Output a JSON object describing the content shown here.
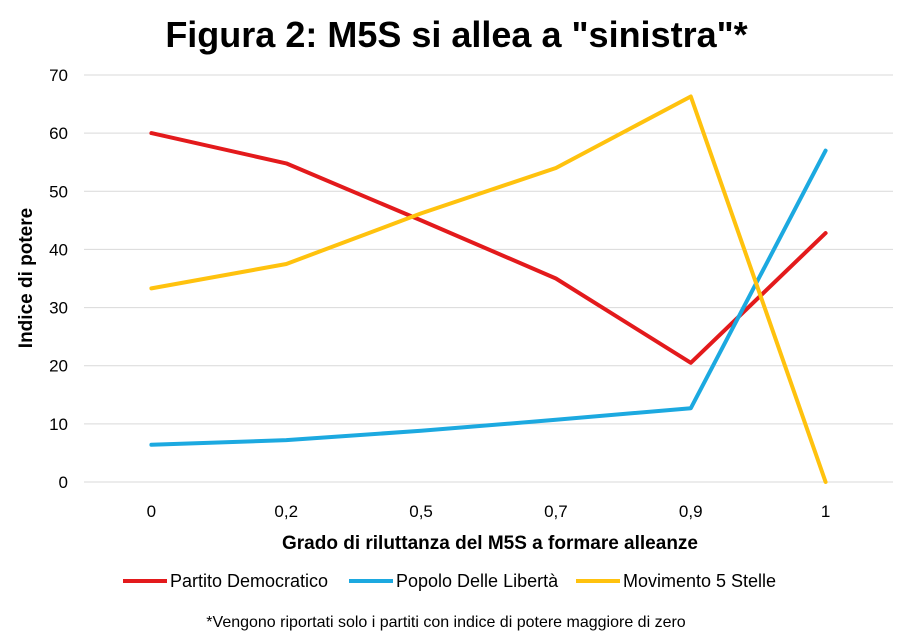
{
  "chart_data": {
    "type": "line",
    "title": "Figura 2: M5S si allea a \"sinistra\"*",
    "xlabel": "Grado di riluttanza del M5S a formare alleanze",
    "ylabel": "Indice di potere",
    "categories": [
      "0",
      "0,2",
      "0,5",
      "0,7",
      "0,9",
      "1"
    ],
    "ylim": [
      0,
      70
    ],
    "yticks": [
      0,
      10,
      20,
      30,
      40,
      50,
      60,
      70
    ],
    "grid": true,
    "legend_position": "bottom",
    "series": [
      {
        "name": "Partito Democratico",
        "color": "#e31a1c",
        "values": [
          60,
          54.8,
          45,
          35,
          20.5,
          42.8
        ]
      },
      {
        "name": "Popolo Delle Libertà",
        "color": "#1ca9e0",
        "values": [
          6.4,
          7.2,
          8.8,
          10.7,
          12.7,
          57
        ]
      },
      {
        "name": "Movimento 5 Stelle",
        "color": "#ffc20e",
        "values": [
          33.3,
          37.5,
          46.2,
          54,
          66.3,
          0
        ]
      }
    ],
    "footnote": "*Vengono riportati solo i partiti con indice di potere maggiore di zero"
  }
}
